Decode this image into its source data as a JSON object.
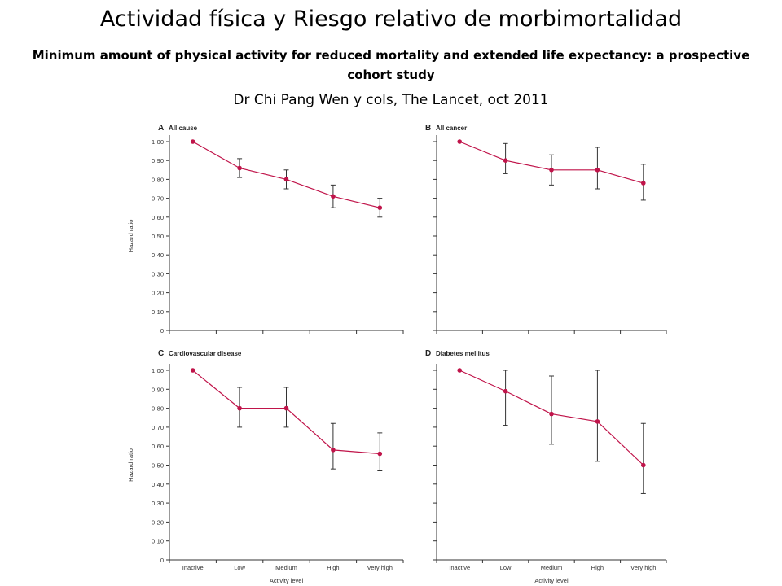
{
  "header": {
    "title": "Actividad física y Riesgo relativo de morbimortalidad",
    "subtitle": "Minimum amount of physical activity for reduced mortality and extended life expectancy: a prospective cohort study",
    "citation": "Dr Chi Pang Wen y cols,  The Lancet, oct 2011"
  },
  "colors": {
    "series": "#c0144a",
    "errorbar": "#333333",
    "axis": "#333333"
  },
  "chart_data": [
    {
      "type": "line",
      "letter": "A",
      "title": "All cause",
      "categories": [
        "Inactive",
        "Low",
        "Medium",
        "High",
        "Very high"
      ],
      "values": [
        1.0,
        0.86,
        0.8,
        0.71,
        0.65
      ],
      "ci_low": [
        1.0,
        0.81,
        0.75,
        0.65,
        0.6
      ],
      "ci_high": [
        1.0,
        0.91,
        0.85,
        0.77,
        0.7
      ],
      "ylabel": "Hazard ratio",
      "xlabel": "",
      "yticks": [
        "0",
        "0·10",
        "0·20",
        "0·30",
        "0·40",
        "0·50",
        "0·60",
        "0·70",
        "0·80",
        "0·90",
        "1·00"
      ],
      "ylim": [
        0,
        1.0
      ],
      "show_y_tick_labels": true,
      "show_x_tick_labels": false
    },
    {
      "type": "line",
      "letter": "B",
      "title": "All cancer",
      "categories": [
        "Inactive",
        "Low",
        "Medium",
        "High",
        "Very high"
      ],
      "values": [
        1.0,
        0.9,
        0.85,
        0.85,
        0.78
      ],
      "ci_low": [
        1.0,
        0.83,
        0.77,
        0.75,
        0.69
      ],
      "ci_high": [
        1.0,
        0.99,
        0.93,
        0.97,
        0.88
      ],
      "ylabel": "",
      "xlabel": "",
      "yticks": [],
      "ylim": [
        0,
        1.0
      ],
      "show_y_tick_labels": false,
      "show_x_tick_labels": false
    },
    {
      "type": "line",
      "letter": "C",
      "title": "Cardiovascular disease",
      "categories": [
        "Inactive",
        "Low",
        "Medium",
        "High",
        "Very high"
      ],
      "values": [
        1.0,
        0.8,
        0.8,
        0.58,
        0.56
      ],
      "ci_low": [
        1.0,
        0.7,
        0.7,
        0.48,
        0.47
      ],
      "ci_high": [
        1.0,
        0.91,
        0.91,
        0.72,
        0.67
      ],
      "ylabel": "Hazard ratio",
      "xlabel": "Activity level",
      "yticks": [
        "0",
        "0·10",
        "0·20",
        "0·30",
        "0·40",
        "0·50",
        "0·60",
        "0·70",
        "0·80",
        "0·90",
        "1·00"
      ],
      "ylim": [
        0,
        1.0
      ],
      "show_y_tick_labels": true,
      "show_x_tick_labels": true
    },
    {
      "type": "line",
      "letter": "D",
      "title": "Diabetes mellitus",
      "categories": [
        "Inactive",
        "Low",
        "Medium",
        "High",
        "Very high"
      ],
      "values": [
        1.0,
        0.89,
        0.77,
        0.73,
        0.5
      ],
      "ci_low": [
        1.0,
        0.71,
        0.61,
        0.52,
        0.35
      ],
      "ci_high": [
        1.0,
        1.0,
        0.97,
        1.0,
        0.72
      ],
      "ylabel": "",
      "xlabel": "Activity level",
      "yticks": [],
      "ylim": [
        0,
        1.0
      ],
      "show_y_tick_labels": false,
      "show_x_tick_labels": true
    }
  ]
}
